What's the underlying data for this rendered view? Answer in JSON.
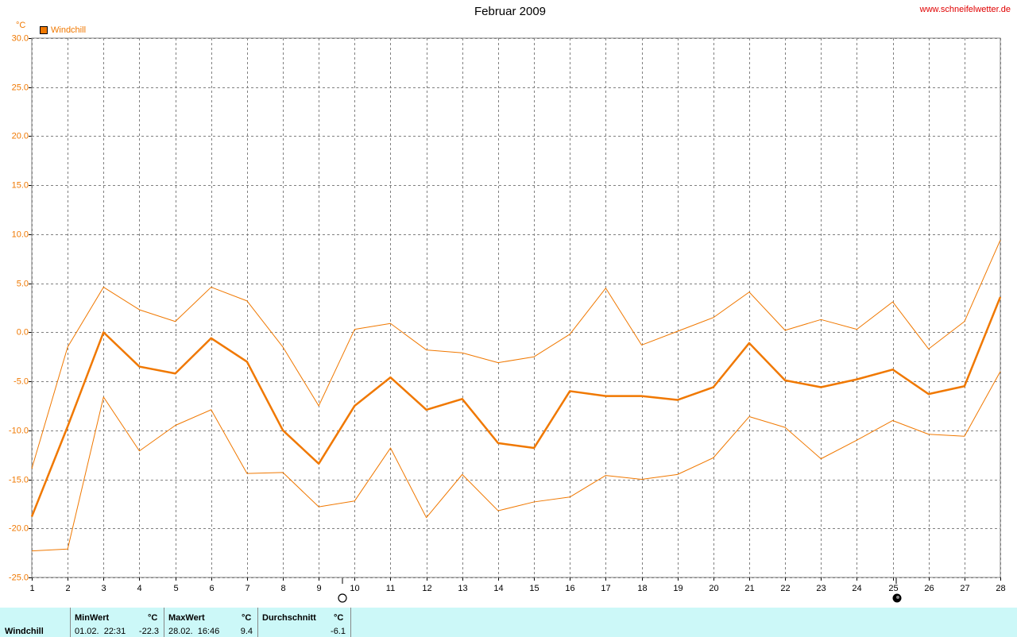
{
  "chart_data": {
    "type": "line",
    "title": "Februar 2009",
    "source": "www.schneifelwetter.de",
    "y_unit": "°C",
    "x": [
      1,
      2,
      3,
      4,
      5,
      6,
      7,
      8,
      9,
      10,
      11,
      12,
      13,
      14,
      15,
      16,
      17,
      18,
      19,
      20,
      21,
      22,
      23,
      24,
      25,
      26,
      27,
      28
    ],
    "xlim": [
      1,
      28
    ],
    "ylim": [
      -25,
      30
    ],
    "yticks": [
      {
        "value": -25,
        "label": "-25.0"
      },
      {
        "value": -20,
        "label": "-20.0"
      },
      {
        "value": -15,
        "label": "-15.0"
      },
      {
        "value": -10,
        "label": "-10.0"
      },
      {
        "value": -5,
        "label": "-5.0"
      },
      {
        "value": 0,
        "label": "0.0"
      },
      {
        "value": 5,
        "label": "5.0"
      },
      {
        "value": 10,
        "label": "10.0"
      },
      {
        "value": 15,
        "label": "15.0"
      },
      {
        "value": 20,
        "label": "20.0"
      },
      {
        "value": 25,
        "label": "25.0"
      },
      {
        "value": 30,
        "label": "30.0"
      }
    ],
    "grid": true,
    "series": [
      {
        "name": "Windchill",
        "color": "#f07800",
        "values": [
          -18.8,
          -9.6,
          0,
          -3.5,
          -4.2,
          -0.6,
          -3.0,
          -10.0,
          -13.4,
          -7.5,
          -4.6,
          -7.9,
          -6.8,
          -11.3,
          -11.8,
          -6.0,
          -6.5,
          -6.5,
          -6.9,
          -5.6,
          -1.1,
          -4.9,
          -5.6,
          -4.8,
          -3.8,
          -6.3,
          -5.5,
          3.6
        ]
      },
      {
        "color": "#f07800",
        "values": [
          -13.9,
          -1.5,
          4.6,
          2.3,
          1.1,
          4.6,
          3.2,
          -1.5,
          -7.5,
          0.3,
          0.9,
          -1.8,
          -2.1,
          -3.1,
          -2.5,
          -0.2,
          4.5,
          -1.3,
          0.1,
          1.5,
          4.1,
          0.2,
          1.3,
          0.3,
          3.1,
          -1.7,
          1.1,
          9.4
        ]
      },
      {
        "color": "#f07800",
        "values": [
          -22.3,
          -22.1,
          -6.6,
          -12.1,
          -9.5,
          -7.9,
          -14.4,
          -14.3,
          -17.8,
          -17.2,
          -11.8,
          -18.9,
          -14.5,
          -18.2,
          -17.3,
          -16.8,
          -14.6,
          -15.0,
          -14.5,
          -12.8,
          -8.6,
          -9.7,
          -12.9,
          -11.0,
          -9.0,
          -10.4,
          -10.6,
          -4.0
        ]
      }
    ]
  },
  "stats": {
    "row_label": "Windchill",
    "columns": [
      {
        "header": "MinWert",
        "unit": "°C",
        "time": "01.02.  22:31",
        "value": -22.3
      },
      {
        "header": "MaxWert",
        "unit": "°C",
        "time": "28.02.  16:46",
        "value": 9.4
      },
      {
        "header": "Durchschnitt",
        "unit": "°C",
        "value": -6.1
      }
    ]
  }
}
